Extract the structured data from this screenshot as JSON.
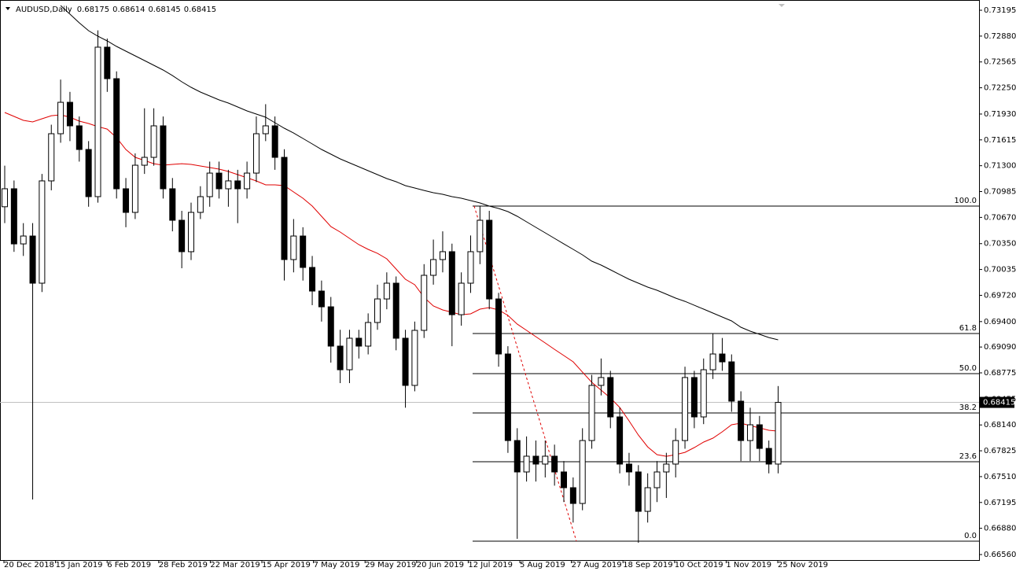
{
  "chart_data": {
    "type": "candlestick",
    "title": "AUDUSD,Daily",
    "header_values": [
      0.68175,
      0.68614,
      0.68145,
      0.68415
    ],
    "ylim": [
      0.66493,
      0.7332
    ],
    "yticks": [
      0.73195,
      {
        "value": 0.7288,
        "label": "0.72880"
      },
      0.72565,
      {
        "value": 0.7225,
        "label": "0.72250"
      },
      {
        "value": 0.7193,
        "label": "0.71930"
      },
      0.71615,
      {
        "value": 0.713,
        "label": "0.71300"
      },
      0.70985,
      {
        "value": 0.7067,
        "label": "0.70670"
      },
      {
        "value": 0.7035,
        "label": "0.70350"
      },
      0.70035,
      {
        "value": 0.6972,
        "label": "0.69720"
      },
      {
        "value": 0.694,
        "label": "0.69400"
      },
      {
        "value": 0.6909,
        "label": "0.69090"
      },
      0.68775,
      0.68455,
      {
        "value": 0.6814,
        "label": "0.68140"
      },
      0.67825,
      {
        "value": 0.6751,
        "label": "0.67510"
      },
      0.67195,
      {
        "value": 0.6688,
        "label": "0.66880"
      },
      {
        "value": 0.6656,
        "label": "0.66560"
      }
    ],
    "x_labels": [
      "20 Dec 2018",
      "15 Jan 2019",
      "6 Feb 2019",
      "28 Feb 2019",
      "22 Mar 2019",
      "15 Apr 2019",
      "7 May 2019",
      "29 May 2019",
      "20 Jun 2019",
      "12 Jul 2019",
      "5 Aug 2019",
      "27 Aug 2019",
      "18 Sep 2019",
      "10 Oct 2019",
      "1 Nov 2019",
      "25 Nov 2019"
    ],
    "candles": {
      "up_color": "#ffffff",
      "down_color": "#000000",
      "open": [
        0.708,
        0.71019,
        0.70347,
        0.70443,
        0.69868,
        0.71115,
        0.7169,
        0.72073,
        0.71786,
        0.71498,
        0.70923,
        0.72745,
        0.72361,
        0.71019,
        0.70731,
        0.71306,
        0.71402,
        0.71786,
        0.71019,
        0.70635,
        0.70252,
        0.70731,
        0.70923,
        0.7121,
        0.71019,
        0.71115,
        0.71019,
        0.7121,
        0.7169,
        0.71786,
        0.71402,
        0.70156,
        0.70443,
        0.7006,
        0.69772,
        0.6958,
        0.69101,
        0.68813,
        0.69197,
        0.69101,
        0.69389,
        0.69676,
        0.69868,
        0.69197,
        0.68622,
        0.69293,
        0.69964,
        0.70156,
        0.70252,
        0.69484,
        0.69868,
        0.70252,
        0.70635,
        0.69676,
        0.69005,
        0.6795,
        0.67567,
        0.67759,
        0.67663,
        0.67759,
        0.67567,
        0.67375,
        0.67183,
        0.6795,
        0.68622,
        0.68718,
        0.68238,
        0.67663,
        0.67567,
        0.67087,
        0.67375,
        0.67567,
        0.67663,
        0.6795,
        0.68718,
        0.68238,
        0.68813,
        0.69005,
        0.68909,
        0.6843,
        0.6795,
        0.68142,
        0.67854,
        0.67663
      ],
      "high": [
        0.713,
        0.7112,
        0.706,
        0.706,
        0.712,
        0.718,
        0.7235,
        0.722,
        0.719,
        0.716,
        0.7295,
        0.7285,
        0.7245,
        0.7115,
        0.7145,
        0.72,
        0.72,
        0.719,
        0.7115,
        0.7075,
        0.7085,
        0.7105,
        0.7135,
        0.7135,
        0.7125,
        0.7125,
        0.7135,
        0.719,
        0.7205,
        0.719,
        0.715,
        0.7065,
        0.7055,
        0.702,
        0.699,
        0.697,
        0.693,
        0.693,
        0.693,
        0.695,
        0.6985,
        0.7,
        0.6995,
        0.693,
        0.694,
        0.701,
        0.704,
        0.705,
        0.7035,
        0.7,
        0.7045,
        0.70808,
        0.7075,
        0.6975,
        0.691,
        0.681,
        0.68,
        0.6795,
        0.6795,
        0.679,
        0.677,
        0.675,
        0.681,
        0.6875,
        0.6895,
        0.688,
        0.6835,
        0.678,
        0.6765,
        0.6755,
        0.677,
        0.678,
        0.681,
        0.6885,
        0.688,
        0.6895,
        0.69254,
        0.692,
        0.69,
        0.6855,
        0.6835,
        0.6825,
        0.6795,
        0.68614
      ],
      "low": [
        0.706,
        0.7025,
        0.702,
        0.67231,
        0.6976,
        0.71,
        0.7158,
        0.716,
        0.7135,
        0.708,
        0.7085,
        0.722,
        0.709,
        0.7055,
        0.7065,
        0.712,
        0.713,
        0.709,
        0.705,
        0.7005,
        0.7015,
        0.7065,
        0.708,
        0.709,
        0.708,
        0.706,
        0.709,
        0.711,
        0.716,
        0.7125,
        0.699,
        0.7,
        0.699,
        0.696,
        0.694,
        0.689,
        0.6865,
        0.6865,
        0.6895,
        0.69,
        0.693,
        0.6955,
        0.6905,
        0.6835,
        0.6855,
        0.692,
        0.6985,
        0.7,
        0.691,
        0.6935,
        0.6975,
        0.701,
        0.6955,
        0.6885,
        0.678,
        0.66752,
        0.6745,
        0.6745,
        0.675,
        0.674,
        0.672,
        0.6695,
        0.671,
        0.6785,
        0.685,
        0.681,
        0.6755,
        0.674,
        0.66704,
        0.6695,
        0.672,
        0.6725,
        0.675,
        0.6785,
        0.681,
        0.6815,
        0.687,
        0.688,
        0.683,
        0.677,
        0.677,
        0.677,
        0.6755,
        0.6755
      ],
      "close": [
        0.71019,
        0.70347,
        0.70443,
        0.69868,
        0.71115,
        0.7169,
        0.72073,
        0.71786,
        0.71498,
        0.70923,
        0.72745,
        0.72361,
        0.71019,
        0.70731,
        0.71306,
        0.71402,
        0.71786,
        0.71019,
        0.70635,
        0.70252,
        0.70731,
        0.70923,
        0.7121,
        0.71019,
        0.71115,
        0.71019,
        0.7121,
        0.7169,
        0.71786,
        0.71402,
        0.70156,
        0.70443,
        0.7006,
        0.69772,
        0.6958,
        0.69101,
        0.68813,
        0.69197,
        0.69101,
        0.69389,
        0.69676,
        0.69868,
        0.69197,
        0.68622,
        0.69293,
        0.69964,
        0.70156,
        0.70252,
        0.69484,
        0.69868,
        0.70252,
        0.70635,
        0.69676,
        0.69005,
        0.6795,
        0.67567,
        0.67759,
        0.67663,
        0.67759,
        0.67567,
        0.67375,
        0.67183,
        0.6795,
        0.68622,
        0.68718,
        0.68238,
        0.67663,
        0.67567,
        0.67087,
        0.67375,
        0.67567,
        0.67663,
        0.6795,
        0.68718,
        0.68238,
        0.68813,
        0.69005,
        0.68909,
        0.6843,
        0.6795,
        0.68142,
        0.67854,
        0.67663,
        0.68415
      ]
    },
    "moving_averages": [
      {
        "color": "#e00000",
        "values": [
          0.71949,
          0.71901,
          0.71853,
          0.71834,
          0.71872,
          0.7191,
          0.7192,
          0.71891,
          0.71843,
          0.71815,
          0.71776,
          0.71747,
          0.71642,
          0.71498,
          0.71402,
          0.71364,
          0.71325,
          0.71306,
          0.71316,
          0.71325,
          0.71316,
          0.71297,
          0.71278,
          0.71258,
          0.7123,
          0.71191,
          0.71153,
          0.71115,
          0.71067,
          0.71067,
          0.71057,
          0.7098,
          0.70904,
          0.70808,
          0.70683,
          0.70558,
          0.70491,
          0.70415,
          0.70338,
          0.7028,
          0.70232,
          0.70165,
          0.70041,
          0.69916,
          0.69849,
          0.69695,
          0.6959,
          0.69542,
          0.69513,
          0.69484,
          0.69494,
          0.69552,
          0.69571,
          0.69542,
          0.69475,
          0.69369,
          0.69293,
          0.69216,
          0.69139,
          0.69062,
          0.68986,
          0.68909,
          0.68784,
          0.6866,
          0.68564,
          0.68468,
          0.68353,
          0.6819,
          0.68017,
          0.67873,
          0.67778,
          0.67758,
          0.67778,
          0.67806,
          0.67864,
          0.67931,
          0.67979,
          0.68056,
          0.68142,
          0.68161,
          0.68132,
          0.68104,
          0.68075,
          0.68065
        ]
      },
      {
        "color": "#000000",
        "values": [
          null,
          null,
          null,
          null,
          null,
          null,
          0.73253,
          0.73147,
          0.73042,
          0.72946,
          0.72879,
          0.72821,
          0.72754,
          0.72697,
          0.72639,
          0.72582,
          0.72524,
          0.72467,
          0.72399,
          0.72323,
          0.72256,
          0.72198,
          0.7215,
          0.72102,
          0.72064,
          0.72016,
          0.71968,
          0.7193,
          0.71891,
          0.71824,
          0.71757,
          0.71699,
          0.71632,
          0.71565,
          0.71498,
          0.71441,
          0.71383,
          0.71335,
          0.71287,
          0.71239,
          0.71191,
          0.71143,
          0.71105,
          0.71057,
          0.71028,
          0.70999,
          0.70971,
          0.70952,
          0.70923,
          0.70904,
          0.70875,
          0.70846,
          0.70808,
          0.70779,
          0.70741,
          0.70683,
          0.70616,
          0.70549,
          0.70482,
          0.70415,
          0.70347,
          0.7028,
          0.70213,
          0.70137,
          0.70089,
          0.70031,
          0.69973,
          0.69916,
          0.69868,
          0.6982,
          0.69782,
          0.69734,
          0.69686,
          0.69647,
          0.69599,
          0.69552,
          0.69504,
          0.69456,
          0.69408,
          0.69331,
          0.69283,
          0.69245,
          0.69206,
          0.69178
        ]
      }
    ],
    "fib_levels": [
      {
        "label": "100.0",
        "value": 0.70808
      },
      {
        "label": "61.8",
        "value": 0.69254
      },
      {
        "label": "50.0",
        "value": 0.68765
      },
      {
        "label": "38.2",
        "value": 0.68286
      },
      {
        "label": "23.6",
        "value": 0.67691
      },
      {
        "label": "0.0",
        "value": 0.66723
      }
    ],
    "trend_line": {
      "color": "#e00000",
      "values": [
        0.70808,
        0.66723
      ]
    },
    "current_price": 0.68415
  }
}
